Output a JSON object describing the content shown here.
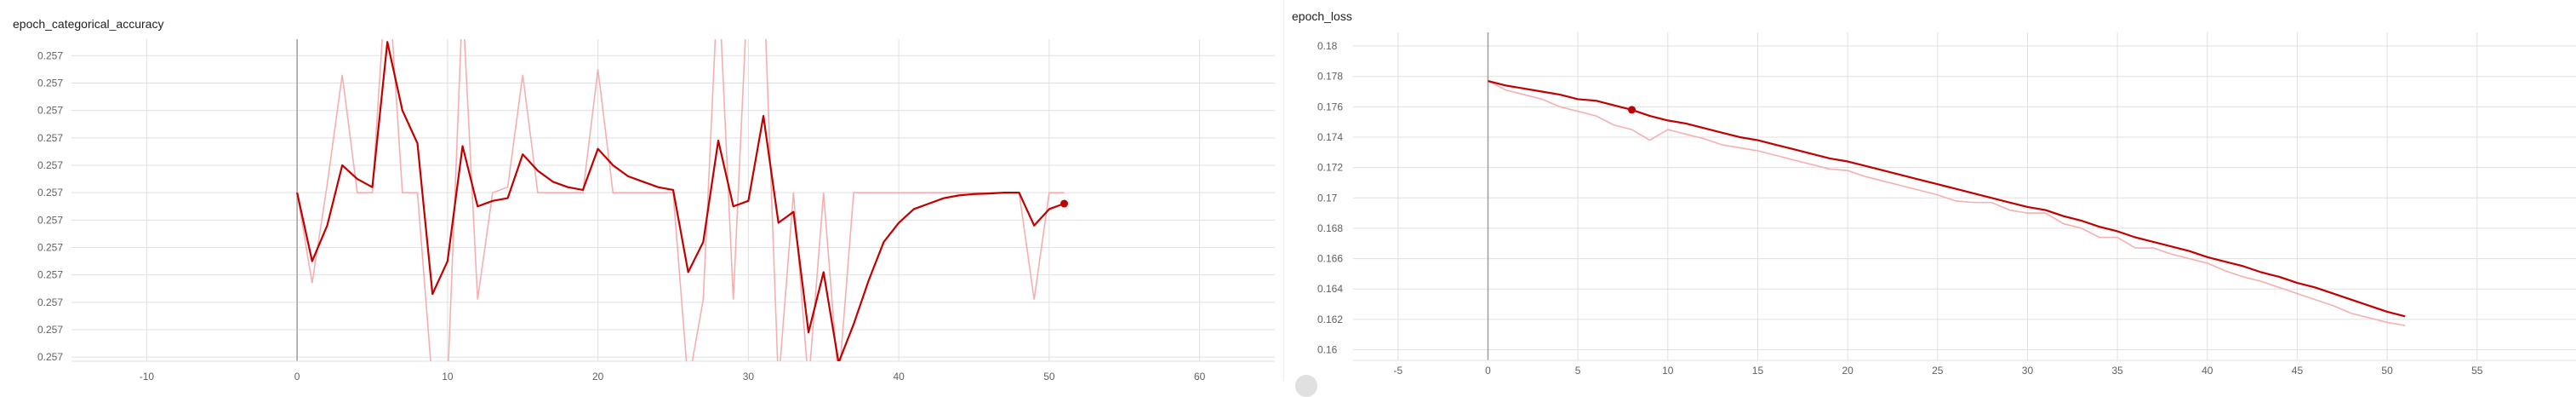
{
  "chart_data": [
    {
      "type": "line",
      "title": "epoch_categorical_accuracy",
      "xlabel": "",
      "ylabel": "",
      "xlim": [
        -15,
        65
      ],
      "x_ticks": [
        -10,
        0,
        10,
        20,
        30,
        40,
        50,
        60
      ],
      "y_tick_labels": [
        "0.257",
        "0.257",
        "0.257",
        "0.257",
        "0.257",
        "0.257",
        "0.257",
        "0.257",
        "0.257",
        "0.257",
        "0.257",
        "0.257"
      ],
      "y_tick_levels": [
        11,
        10,
        9,
        8,
        7,
        6,
        5,
        4,
        3,
        2,
        1,
        0
      ],
      "ylim": [
        -0.15,
        11.6
      ],
      "grid": true,
      "colors": {
        "smoothed": "#c00000",
        "raw": "#f4b0b0",
        "grid": "#e0e0e0",
        "axis": "#9e9e9e"
      },
      "series": [
        {
          "x": [
            0,
            1,
            2,
            3,
            4,
            5,
            6,
            7,
            8,
            9,
            10,
            11,
            12,
            13,
            14,
            15,
            16,
            17,
            18,
            19,
            20,
            21,
            22,
            23,
            24,
            25,
            26,
            27,
            28,
            29,
            30,
            31,
            32,
            33,
            34,
            35,
            36,
            37,
            38,
            39,
            40,
            41,
            42,
            43,
            44,
            45,
            46,
            47,
            48,
            49,
            50,
            51
          ],
          "values": [
            6.0,
            2.7,
            6.3,
            10.3,
            6.0,
            6.0,
            14.5,
            6.0,
            6.0,
            -1.0,
            -1.0,
            13.0,
            2.1,
            6.0,
            6.2,
            10.3,
            6.0,
            6.0,
            6.0,
            6.0,
            10.5,
            6.0,
            6.0,
            6.0,
            6.0,
            6.0,
            -1.0,
            2.1,
            14.0,
            2.1,
            14.0,
            14.0,
            -1.0,
            6.0,
            -1.0,
            6.0,
            -1.0,
            6.0,
            6.0,
            6.0,
            6.0,
            6.0,
            6.0,
            6.0,
            6.0,
            6.0,
            6.0,
            6.0,
            6.0,
            2.1,
            6.0,
            6.0
          ]
        },
        {
          "x": [
            0,
            1,
            2,
            3,
            4,
            5,
            6,
            7,
            8,
            9,
            10,
            11,
            12,
            13,
            14,
            15,
            16,
            17,
            18,
            19,
            20,
            21,
            22,
            23,
            24,
            25,
            26,
            27,
            28,
            29,
            30,
            31,
            32,
            33,
            34,
            35,
            36,
            37,
            38,
            39,
            40,
            41,
            42,
            43,
            44,
            45,
            46,
            47,
            48,
            49,
            50,
            51
          ],
          "values": [
            6.0,
            3.5,
            4.8,
            7.0,
            6.5,
            6.2,
            11.5,
            9.0,
            7.8,
            2.3,
            3.5,
            7.7,
            5.5,
            5.7,
            5.8,
            7.4,
            6.8,
            6.4,
            6.2,
            6.1,
            7.6,
            7.0,
            6.6,
            6.4,
            6.2,
            6.1,
            3.1,
            4.2,
            7.9,
            5.5,
            5.7,
            8.8,
            4.9,
            5.3,
            0.9,
            3.1,
            -0.2,
            1.2,
            2.8,
            4.2,
            4.9,
            5.4,
            5.6,
            5.8,
            5.9,
            5.95,
            5.97,
            6.0,
            6.0,
            4.8,
            5.4,
            5.6
          ]
        }
      ]
    },
    {
      "type": "line",
      "title": "epoch_loss",
      "xlabel": "",
      "ylabel": "",
      "xlim": [
        -7.5,
        60.5
      ],
      "x_ticks": [
        -5,
        0,
        5,
        10,
        15,
        20,
        25,
        30,
        35,
        40,
        45,
        50,
        55
      ],
      "y_ticks": [
        0.16,
        0.162,
        0.164,
        0.166,
        0.168,
        0.17,
        0.172,
        0.174,
        0.176,
        0.178,
        0.18
      ],
      "y_tick_labels": [
        "0.16",
        "0.162",
        "0.164",
        "0.166",
        "0.168",
        "0.17",
        "0.172",
        "0.174",
        "0.176",
        "0.178",
        "0.18"
      ],
      "ylim": [
        0.1593,
        0.1809
      ],
      "grid": true,
      "colors": {
        "smoothed": "#c00000",
        "raw": "#f4b0b0",
        "grid": "#e0e0e0",
        "axis": "#9e9e9e"
      },
      "series": [
        {
          "x": [
            0,
            1,
            2,
            3,
            4,
            5,
            6,
            7,
            8,
            9,
            10,
            11,
            12,
            13,
            14,
            15,
            16,
            17,
            18,
            19,
            20,
            21,
            22,
            23,
            24,
            25,
            26,
            27,
            28,
            29,
            30,
            31,
            32,
            33,
            34,
            35,
            36,
            37,
            38,
            39,
            40,
            41,
            42,
            43,
            44,
            45,
            46,
            47,
            48,
            49,
            50,
            51
          ],
          "values": [
            0.1777,
            0.1771,
            0.1768,
            0.1765,
            0.176,
            0.1757,
            0.1754,
            0.1748,
            0.1745,
            0.1738,
            0.1745,
            0.1742,
            0.1739,
            0.1735,
            0.1733,
            0.1731,
            0.1728,
            0.1725,
            0.1722,
            0.1719,
            0.1718,
            0.1714,
            0.1711,
            0.1708,
            0.1705,
            0.1702,
            0.1698,
            0.1697,
            0.1697,
            0.1692,
            0.169,
            0.169,
            0.1683,
            0.168,
            0.1674,
            0.1674,
            0.1667,
            0.1667,
            0.1663,
            0.166,
            0.1657,
            0.1652,
            0.1648,
            0.1645,
            0.1641,
            0.1637,
            0.1633,
            0.1629,
            0.1624,
            0.1621,
            0.1618,
            0.1616
          ]
        },
        {
          "x": [
            0,
            1,
            2,
            3,
            4,
            5,
            6,
            7,
            8,
            9,
            10,
            11,
            12,
            13,
            14,
            15,
            16,
            17,
            18,
            19,
            20,
            21,
            22,
            23,
            24,
            25,
            26,
            27,
            28,
            29,
            30,
            31,
            32,
            33,
            34,
            35,
            36,
            37,
            38,
            39,
            40,
            41,
            42,
            43,
            44,
            45,
            46,
            47,
            48,
            49,
            50,
            51
          ],
          "values": [
            0.1777,
            0.1774,
            0.1772,
            0.177,
            0.1768,
            0.1765,
            0.1764,
            0.1761,
            0.1758,
            0.1754,
            0.1751,
            0.1749,
            0.1746,
            0.1743,
            0.174,
            0.1738,
            0.1735,
            0.1732,
            0.1729,
            0.1726,
            0.1724,
            0.1721,
            0.1718,
            0.1715,
            0.1712,
            0.1709,
            0.1706,
            0.1703,
            0.17,
            0.1697,
            0.1694,
            0.1692,
            0.1688,
            0.1685,
            0.1681,
            0.1678,
            0.1674,
            0.1671,
            0.1668,
            0.1665,
            0.1661,
            0.1658,
            0.1655,
            0.1651,
            0.1648,
            0.1644,
            0.1641,
            0.1637,
            0.1633,
            0.1629,
            0.1625,
            0.1622
          ]
        }
      ]
    }
  ]
}
